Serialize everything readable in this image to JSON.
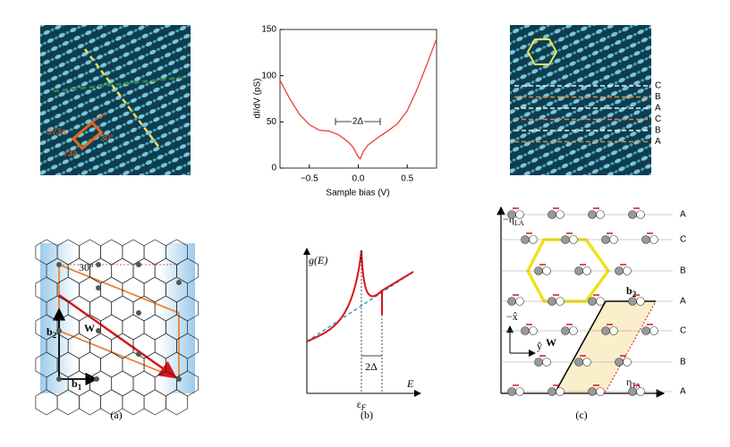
{
  "chart_data": {
    "type": "line",
    "ylabel": "dI/dV (pS)",
    "xlabel": "Sample bias (V)",
    "annotation": "2Δ",
    "x": [
      -0.8,
      -0.7,
      -0.6,
      -0.5,
      -0.4,
      -0.3,
      -0.2,
      -0.1,
      -0.05,
      0,
      0.02,
      0.05,
      0.1,
      0.2,
      0.3,
      0.4,
      0.5,
      0.6,
      0.7,
      0.8
    ],
    "values": [
      95,
      75,
      58,
      47,
      41,
      40,
      36,
      28,
      22,
      12,
      10,
      18,
      25,
      33,
      40,
      48,
      62,
      85,
      112,
      140
    ],
    "color": "#e8413c",
    "xlim": [
      -0.8,
      0.8
    ],
    "ylim": [
      0,
      150
    ],
    "xticks": [
      {
        "value": -0.5,
        "label": "−0.5"
      },
      {
        "value": 0,
        "label": "0.0"
      },
      {
        "value": 0.5,
        "label": "0.5"
      }
    ],
    "yticks": [
      0,
      50,
      100,
      150
    ]
  },
  "stm_left": {
    "long": "3√3a",
    "short": "√3a",
    "angle": "30°"
  },
  "stm_right": {
    "rows": [
      "C",
      "B",
      "A",
      "C",
      "B",
      "A"
    ]
  },
  "lattice": {
    "angle": "30°",
    "b2": "b",
    "b2_sub": "2",
    "b1": "b",
    "b1_sub": "1",
    "w": "W"
  },
  "dos": {
    "ylabel": "g(E)",
    "xlabel": "E",
    "fermi": "ε",
    "fermi_sub": "F",
    "gap": "2Δ"
  },
  "stacking": {
    "eta_la": "−η",
    "eta_la_sub": "LA",
    "eta_ta": "η",
    "eta_ta_sub": "TA",
    "rows": [
      "A",
      "C",
      "B",
      "A",
      "C",
      "B",
      "A"
    ],
    "b2": "b",
    "b2_sub": "2",
    "w": "W",
    "x_axis": "−x̂",
    "y_axis": "ŷ"
  },
  "panel_labels": [
    "(a)",
    "(b)",
    "(c)"
  ]
}
